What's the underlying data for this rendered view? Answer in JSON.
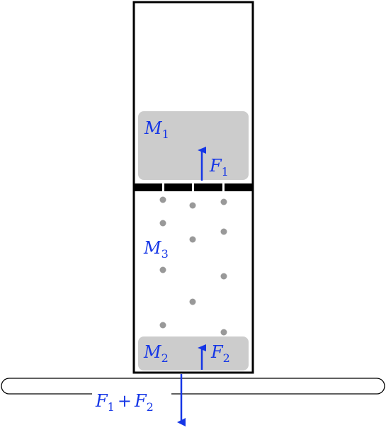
{
  "labels": {
    "m1": {
      "symbol": "M",
      "sub": "1"
    },
    "m2": {
      "symbol": "M",
      "sub": "2"
    },
    "m3": {
      "symbol": "M",
      "sub": "3"
    },
    "f1": {
      "symbol": "F",
      "sub": "1"
    },
    "f2": {
      "symbol": "F",
      "sub": "2"
    },
    "total": {
      "a": "F",
      "a_sub": "1",
      "op": "+",
      "b": "F",
      "b_sub": "2"
    }
  },
  "colors": {
    "accent": "#1536e6",
    "block": "#cccccc",
    "particle": "#999999",
    "outline": "#000000"
  }
}
